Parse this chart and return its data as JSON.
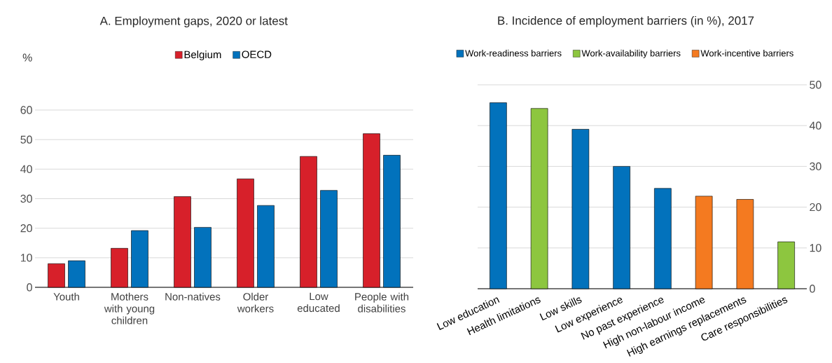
{
  "chart_data": [
    {
      "type": "bar",
      "title": "A. Employment gaps, 2020 or latest",
      "ylabel": "%",
      "categories": [
        "Youth",
        "Mothers with young children",
        "Non-natives",
        "Older workers",
        "Low educated",
        "People with disabilities"
      ],
      "series": [
        {
          "name": "Belgium",
          "color": "#d7202a",
          "values": [
            8,
            13.2,
            30.7,
            36.7,
            44.3,
            52
          ]
        },
        {
          "name": "OECD",
          "color": "#0272bc",
          "values": [
            9,
            19.2,
            20.3,
            27.7,
            32.8,
            44.7
          ]
        }
      ],
      "ylim": [
        0,
        60
      ],
      "yticks": [
        0,
        10,
        20,
        30,
        40,
        50,
        60
      ],
      "grid": "y",
      "legend": "top"
    },
    {
      "type": "bar",
      "title": "B. Incidence of employment barriers (in %), 2017",
      "categories": [
        "Low education",
        "Health limitations",
        "Low skills",
        "Low experience",
        "No past experience",
        "High non-labour income",
        "High earnings replacements",
        "Care responsibilities"
      ],
      "series": [
        {
          "name": "Work-readiness barriers",
          "color": "#0272bc",
          "values": [
            45.6,
            null,
            39.1,
            30,
            24.6,
            null,
            null,
            null
          ]
        },
        {
          "name": "Work-availability barriers",
          "color": "#8dc63f",
          "values": [
            null,
            44.2,
            null,
            null,
            null,
            null,
            null,
            11.5
          ]
        },
        {
          "name": "Work-incentive barriers",
          "color": "#f47a20",
          "values": [
            null,
            null,
            null,
            null,
            null,
            22.7,
            21.9,
            null
          ]
        }
      ],
      "ylim": [
        0,
        50
      ],
      "yticks": [
        0,
        10,
        20,
        30,
        40,
        50
      ],
      "grid": "y",
      "legend": "top"
    }
  ]
}
